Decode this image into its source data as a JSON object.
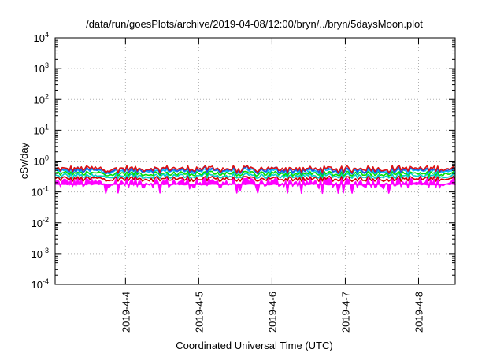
{
  "chart_data": {
    "type": "line",
    "title": "/data/run/goesPlots/archive/2019-04-08/12:00/bryn/../bryn/5daysMoon.plot",
    "xlabel": "Coordinated Universal Time (UTC)",
    "ylabel": "cSv/day",
    "y_scale": "log",
    "ylim_exponents": [
      -4,
      4
    ],
    "y_tick_labels": [
      {
        "base": "10",
        "exp": "-4"
      },
      {
        "base": "10",
        "exp": "-3"
      },
      {
        "base": "10",
        "exp": "-2"
      },
      {
        "base": "10",
        "exp": "-1"
      },
      {
        "base": "10",
        "exp": "0"
      },
      {
        "base": "10",
        "exp": "1"
      },
      {
        "base": "10",
        "exp": "2"
      },
      {
        "base": "10",
        "exp": "3"
      },
      {
        "base": "10",
        "exp": "4"
      }
    ],
    "x_range_days": [
      "2019-04-03 00:57",
      "2019-04-08 12:00"
    ],
    "x_ticks": [
      "2019-4-4",
      "2019-4-5",
      "2019-4-6",
      "2019-4-7",
      "2019-4-8"
    ],
    "grid": true,
    "series": [
      {
        "color": "#ff00ff",
        "median": 0.2,
        "low": 0.09,
        "high": 0.28
      },
      {
        "color": "#cc0000",
        "median": 0.27,
        "low": 0.22,
        "high": 0.33
      },
      {
        "color": "#00cccc",
        "median": 0.33,
        "low": 0.28,
        "high": 0.4
      },
      {
        "color": "#00dd00",
        "median": 0.4,
        "low": 0.33,
        "high": 0.47
      },
      {
        "color": "#00bbff",
        "median": 0.48,
        "low": 0.38,
        "high": 0.6
      },
      {
        "color": "#2255dd",
        "median": 0.52,
        "low": 0.38,
        "high": 0.7
      },
      {
        "color": "#dd1111",
        "median": 0.57,
        "low": 0.42,
        "high": 0.78
      }
    ]
  }
}
